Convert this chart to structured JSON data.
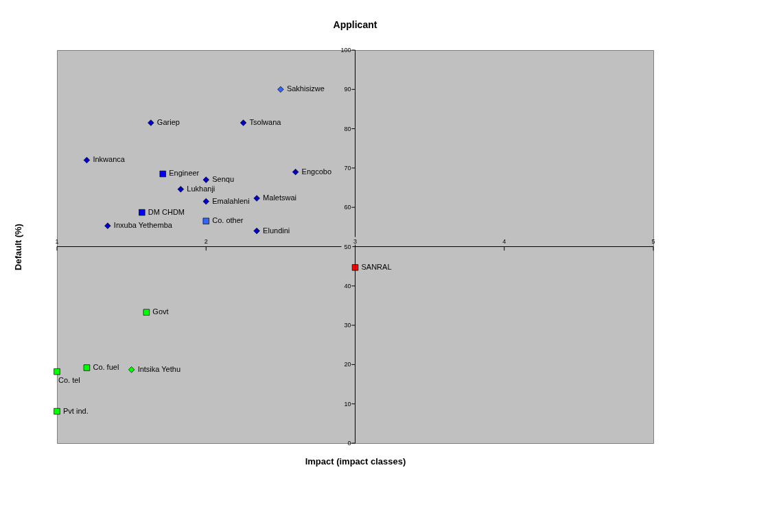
{
  "chart_data": {
    "type": "scatter",
    "title": "Applicant",
    "xlabel": "Impact (impact classes)",
    "ylabel": "Default (%)",
    "xlim": [
      1,
      5
    ],
    "xticks": [
      1,
      2,
      3,
      4,
      5
    ],
    "ylim": [
      0,
      100
    ],
    "yticks": [
      0,
      10,
      20,
      30,
      40,
      50,
      60,
      70,
      80,
      90,
      100
    ],
    "grid": false,
    "legend": false,
    "series": [
      {
        "color": "#0000cc",
        "marker": "diamond",
        "x": [
          1.63,
          2.25,
          1.2,
          2.0,
          2.6,
          1.83,
          2.0,
          2.34,
          1.34,
          2.34
        ],
        "values": [
          81.5,
          81.5,
          72,
          67,
          69,
          64.6,
          61.5,
          62.3,
          55.3,
          54
        ]
      },
      {
        "color": "#3366ff",
        "marker": "diamond",
        "x": [
          2.5
        ],
        "values": [
          90
        ]
      },
      {
        "color": "#0000ff",
        "marker": "square",
        "x": [
          1.71,
          1.57
        ],
        "values": [
          68.5,
          58.7
        ]
      },
      {
        "color": "#3366ff",
        "marker": "square",
        "x": [
          2.0
        ],
        "values": [
          56.5
        ]
      },
      {
        "color": "#ff0000",
        "marker": "square",
        "x": [
          3.0
        ],
        "values": [
          44.7
        ]
      },
      {
        "color": "#00ff00",
        "marker": "square",
        "x": [
          1.6,
          1.2,
          1.0,
          1.0
        ],
        "values": [
          33.3,
          19.2,
          18.2,
          8.1
        ]
      },
      {
        "color": "#00ff00",
        "marker": "diamond",
        "x": [
          1.5
        ],
        "values": [
          18.7
        ]
      }
    ],
    "annotations": [
      {
        "text": "Gariep",
        "x": 1.63,
        "y": 81.5
      },
      {
        "text": "Tsolwana",
        "x": 2.25,
        "y": 81.5
      },
      {
        "text": "Inkwanca",
        "x": 1.2,
        "y": 72
      },
      {
        "text": "Senqu",
        "x": 2.0,
        "y": 67
      },
      {
        "text": "Engcobo",
        "x": 2.6,
        "y": 69
      },
      {
        "text": "Lukhanji",
        "x": 1.83,
        "y": 64.6
      },
      {
        "text": "Emalahleni",
        "x": 2.0,
        "y": 61.5
      },
      {
        "text": "Maletswai",
        "x": 2.34,
        "y": 62.3
      },
      {
        "text": "Inxuba Yethemba",
        "x": 1.34,
        "y": 55.3
      },
      {
        "text": "Elundini",
        "x": 2.34,
        "y": 54
      },
      {
        "text": "Sakhisizwe",
        "x": 2.5,
        "y": 90
      },
      {
        "text": "Engineer",
        "x": 1.71,
        "y": 68.5
      },
      {
        "text": "DM CHDM",
        "x": 1.57,
        "y": 58.7
      },
      {
        "text": "Co. other",
        "x": 2.0,
        "y": 56.5
      },
      {
        "text": "SANRAL",
        "x": 3.0,
        "y": 44.7
      },
      {
        "text": "Govt",
        "x": 1.6,
        "y": 33.3
      },
      {
        "text": "Co. fuel",
        "x": 1.2,
        "y": 19.2
      },
      {
        "text": "Co. tel",
        "x": 1.0,
        "y": 18.2
      },
      {
        "text": "Pvt ind.",
        "x": 1.0,
        "y": 8.1
      },
      {
        "text": "Intsika Yethu",
        "x": 1.5,
        "y": 18.7
      }
    ]
  }
}
